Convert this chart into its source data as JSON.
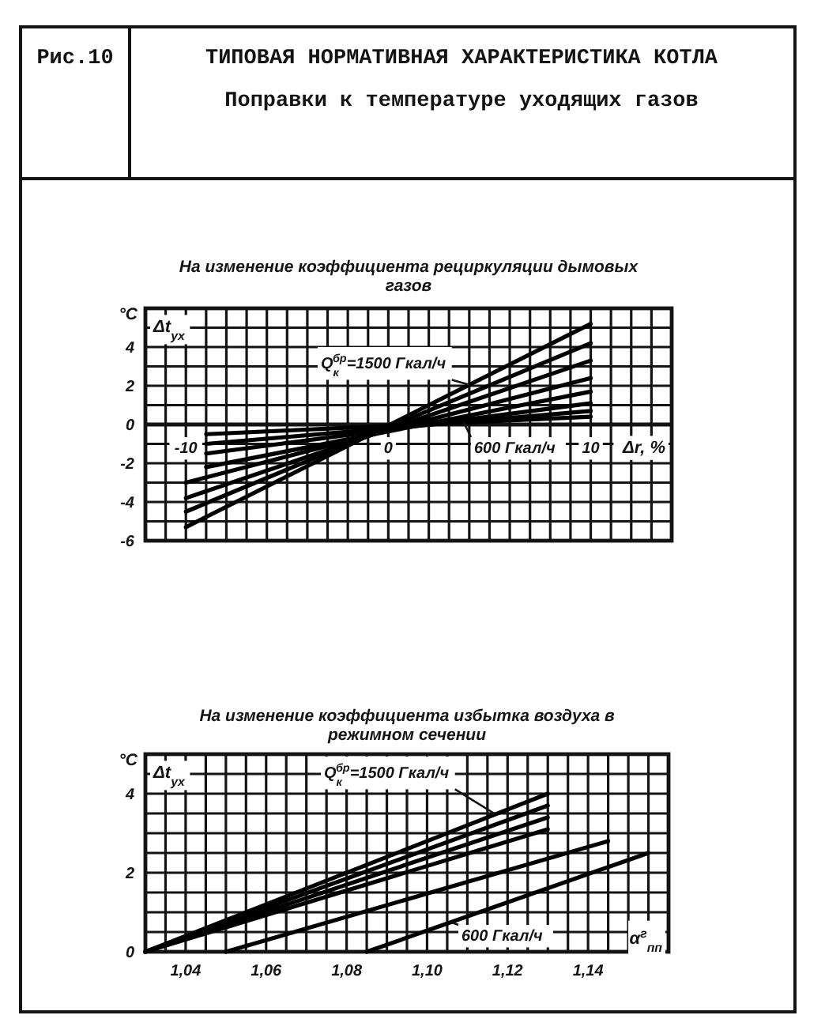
{
  "chart_data": [
    {
      "type": "line",
      "title": "На изменение коэффициента рециркуляции дымовых газов",
      "xlabel": "Δr, %",
      "ylabel": "Δt$_{ух}$",
      "annotations": [
        "Рис.10",
        "ТИПОВАЯ НОРМАТИВНАЯ ХАРАКТЕРИСТИКА КОТЛА",
        "Поправки к температуре уходящих газов",
        "°C"
      ],
      "series": [
        {
          "name": "Q$_{к}$$^{бр}$=1500 Гкал/ч",
          "color": "#000000",
          "x": [
            -10,
            10
          ],
          "values": [
            -5.3,
            5.2
          ]
        },
        {
          "color": "#000000",
          "x": [
            -10,
            10
          ],
          "values": [
            -4.5,
            4.2
          ]
        },
        {
          "color": "#000000",
          "x": [
            -10,
            10
          ],
          "values": [
            -3.8,
            3.3
          ]
        },
        {
          "color": "#000000",
          "x": [
            -10,
            10
          ],
          "values": [
            -3.0,
            2.4
          ]
        },
        {
          "color": "#000000",
          "x": [
            -9,
            10
          ],
          "values": [
            -2.2,
            1.7
          ]
        },
        {
          "color": "#000000",
          "x": [
            -9,
            10
          ],
          "values": [
            -1.5,
            1.1
          ]
        },
        {
          "color": "#000000",
          "x": [
            -9,
            10
          ],
          "values": [
            -1.0,
            0.7
          ]
        },
        {
          "name": "600 Гкал/ч",
          "color": "#000000",
          "x": [
            -9,
            10
          ],
          "values": [
            -0.5,
            0.4
          ]
        }
      ],
      "xlim": [
        -12,
        14
      ],
      "xticks": [
        {
          "value": -12,
          "label": null
        },
        {
          "value": -11,
          "label": null
        },
        -10,
        {
          "value": -9,
          "label": null
        },
        {
          "value": -8,
          "label": null
        },
        {
          "value": -7,
          "label": null
        },
        {
          "value": -6,
          "label": null
        },
        {
          "value": -5,
          "label": null
        },
        {
          "value": -4,
          "label": null
        },
        {
          "value": -3,
          "label": null
        },
        {
          "value": -2,
          "label": null
        },
        {
          "value": -1,
          "label": null
        },
        0,
        {
          "value": 1,
          "label": null
        },
        {
          "value": 2,
          "label": null
        },
        {
          "value": 3,
          "label": null
        },
        {
          "value": 4,
          "label": null
        },
        {
          "value": 5,
          "label": null
        },
        {
          "value": 6,
          "label": null
        },
        {
          "value": 7,
          "label": null
        },
        {
          "value": 8,
          "label": null
        },
        {
          "value": 9,
          "label": null
        },
        10,
        {
          "value": 11,
          "label": null
        },
        {
          "value": 12,
          "label": null
        },
        {
          "value": 13,
          "label": null
        },
        {
          "value": 14,
          "label": null
        }
      ],
      "ylim": [
        -6,
        6
      ],
      "yticks": [
        -6,
        {
          "value": -5,
          "label": null
        },
        -4,
        {
          "value": -3,
          "label": null
        },
        -2,
        {
          "value": -1,
          "label": null
        },
        0,
        {
          "value": 1,
          "label": null
        },
        2,
        {
          "value": 3,
          "label": null
        },
        4,
        {
          "value": 5,
          "label": null
        },
        {
          "value": 6,
          "label": null
        }
      ],
      "grid": true
    },
    {
      "type": "line",
      "title": "На изменение коэффициента избытка воздуха в режимном сечении",
      "xlabel": "α$^{г}$$_{пп}$",
      "ylabel": "Δt$_{ух}$",
      "annotations": [
        "°C"
      ],
      "series": [
        {
          "name": "Q$_{к}$$^{бр}$=1500 Гкал/ч",
          "color": "#000000",
          "x": [
            1.03,
            1.13
          ],
          "values": [
            0,
            4.0
          ]
        },
        {
          "color": "#000000",
          "x": [
            1.03,
            1.13
          ],
          "values": [
            0,
            3.7
          ]
        },
        {
          "color": "#000000",
          "x": [
            1.03,
            1.13
          ],
          "values": [
            0,
            3.4
          ]
        },
        {
          "color": "#000000",
          "x": [
            1.03,
            1.13
          ],
          "values": [
            0,
            3.1
          ]
        },
        {
          "color": "#000000",
          "x": [
            1.05,
            1.145
          ],
          "values": [
            0,
            2.8
          ]
        },
        {
          "name": "600 Гкал/ч",
          "color": "#000000",
          "x": [
            1.085,
            1.155
          ],
          "values": [
            0,
            2.5
          ]
        }
      ],
      "xlim": [
        1.03,
        1.16
      ],
      "xticks": [
        {
          "value": 1.03,
          "label": null
        },
        {
          "value": 1.035,
          "label": null
        },
        {
          "value": 1.04,
          "label": "1,04"
        },
        {
          "value": 1.045,
          "label": null
        },
        {
          "value": 1.05,
          "label": null
        },
        {
          "value": 1.055,
          "label": null
        },
        {
          "value": 1.06,
          "label": "1,06"
        },
        {
          "value": 1.065,
          "label": null
        },
        {
          "value": 1.07,
          "label": null
        },
        {
          "value": 1.075,
          "label": null
        },
        {
          "value": 1.08,
          "label": "1,08"
        },
        {
          "value": 1.085,
          "label": null
        },
        {
          "value": 1.09,
          "label": null
        },
        {
          "value": 1.095,
          "label": null
        },
        {
          "value": 1.1,
          "label": "1,10"
        },
        {
          "value": 1.105,
          "label": null
        },
        {
          "value": 1.11,
          "label": null
        },
        {
          "value": 1.115,
          "label": null
        },
        {
          "value": 1.12,
          "label": "1,12"
        },
        {
          "value": 1.125,
          "label": null
        },
        {
          "value": 1.13,
          "label": null
        },
        {
          "value": 1.135,
          "label": null
        },
        {
          "value": 1.14,
          "label": "1,14"
        },
        {
          "value": 1.145,
          "label": null
        },
        {
          "value": 1.15,
          "label": null
        },
        {
          "value": 1.155,
          "label": null
        },
        {
          "value": 1.16,
          "label": null
        }
      ],
      "ylim": [
        0,
        5
      ],
      "yticks": [
        0,
        {
          "value": 0.5,
          "label": null
        },
        {
          "value": 1,
          "label": null
        },
        {
          "value": 1.5,
          "label": null
        },
        2,
        {
          "value": 2.5,
          "label": null
        },
        {
          "value": 3,
          "label": null
        },
        {
          "value": 3.5,
          "label": null
        },
        4,
        {
          "value": 4.5,
          "label": null
        },
        {
          "value": 5,
          "label": null
        }
      ],
      "grid": true
    }
  ]
}
